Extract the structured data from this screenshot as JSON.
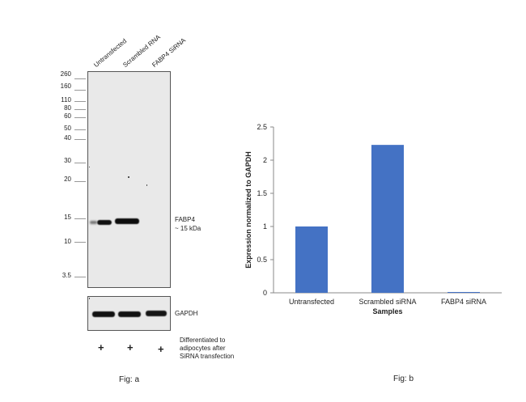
{
  "fig_a": {
    "lanes": [
      "Untransfected",
      "Scrambled RNA",
      "FABP4 SiRNA"
    ],
    "markers": [
      "260",
      "160",
      "110",
      "80",
      "60",
      "50",
      "40",
      "30",
      "20",
      "15",
      "10",
      "3.5"
    ],
    "band_label_line1": "FABP4",
    "band_label_line2": "~ 15 kDa",
    "gapdh_label": "GAPDH",
    "treatment_signs": [
      "+",
      "+",
      "+"
    ],
    "treatment_text": [
      "Differentiated to",
      "adipocytes after",
      "SiRNA transfection"
    ],
    "caption": "Fig: a"
  },
  "fig_b": {
    "caption": "Fig: b"
  },
  "chart_data": {
    "type": "bar",
    "categories": [
      "Untransfected",
      "Scrambled siRNA",
      "FABP4 siRNA"
    ],
    "values": [
      1.0,
      2.23,
      0.01
    ],
    "title": "",
    "xlabel": "Samples",
    "ylabel": "Expression normalized to GAPDH",
    "ylim": [
      0,
      2.5
    ],
    "yticks": [
      "0",
      "0.5",
      "1",
      "1.5",
      "2",
      "2.5"
    ],
    "bar_color": "#4472c4",
    "grid": false
  }
}
